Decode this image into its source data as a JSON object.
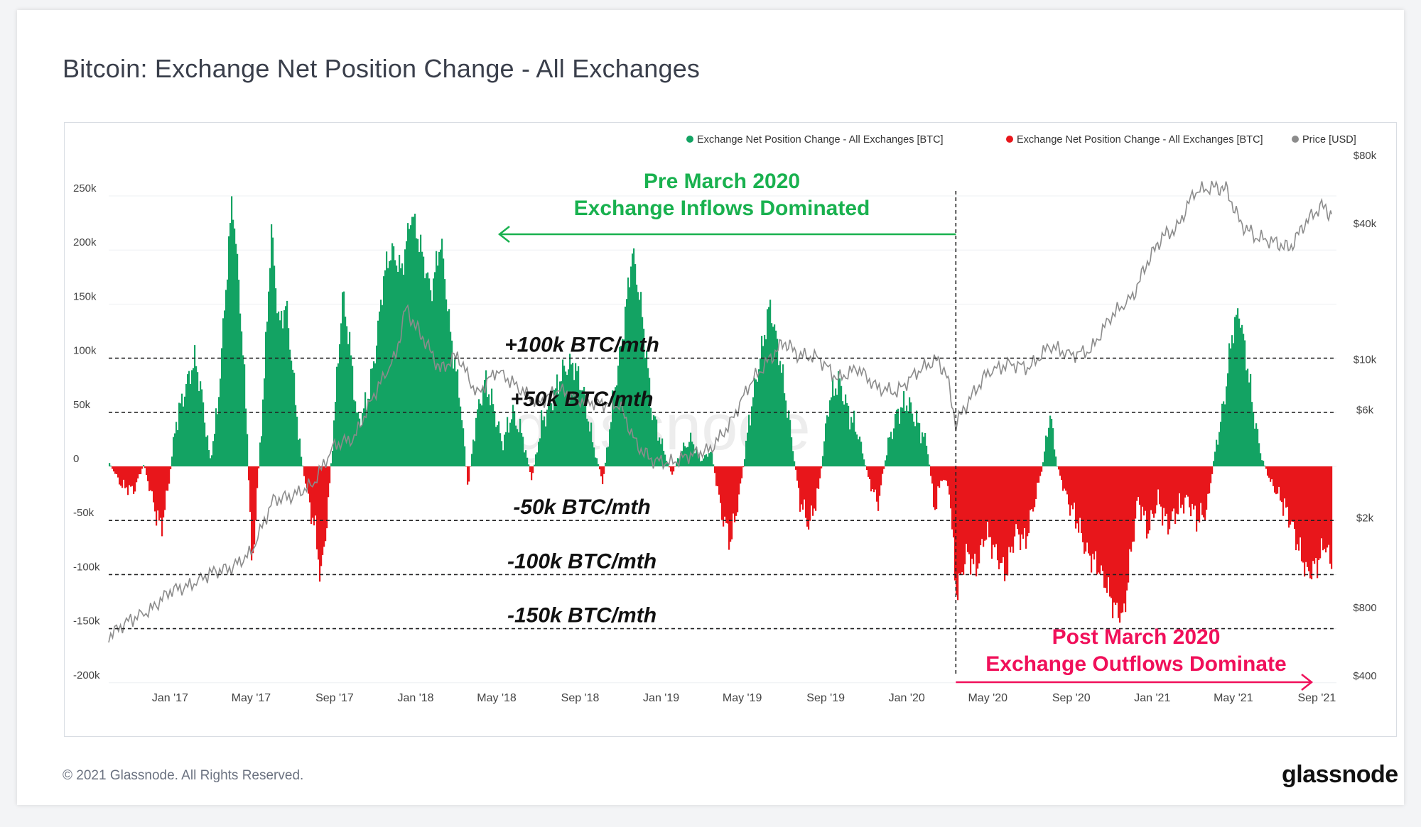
{
  "page": {
    "title": "Bitcoin: Exchange Net Position Change - All Exchanges",
    "copyright": "© 2021 Glassnode. All Rights Reserved.",
    "brand": "glassnode",
    "watermark": "glassnode"
  },
  "colors": {
    "inflow": "#13a363",
    "outflow": "#e8161b",
    "price": "#8c8c8c",
    "annot_green": "#19b14f",
    "annot_pink": "#f0105a",
    "grid": "#eef0f3"
  },
  "chart_data": {
    "type": "bar",
    "title": "Bitcoin: Exchange Net Position Change - All Exchanges",
    "legend": [
      {
        "label": "Exchange Net Position Change - All Exchanges [BTC]",
        "color": "#13a363"
      },
      {
        "label": "Exchange Net Position Change - All Exchanges [BTC]",
        "color": "#e8161b"
      },
      {
        "label": "Price [USD]",
        "color": "#8c8c8c"
      }
    ],
    "legend_position": "top-right",
    "x_range": [
      2016.75,
      2021.75
    ],
    "x_ticks": [
      {
        "label": "Jan '17",
        "t": 2017.0
      },
      {
        "label": "May '17",
        "t": 2017.33
      },
      {
        "label": "Sep '17",
        "t": 2017.67
      },
      {
        "label": "Jan '18",
        "t": 2018.0
      },
      {
        "label": "May '18",
        "t": 2018.33
      },
      {
        "label": "Sep '18",
        "t": 2018.67
      },
      {
        "label": "Jan '19",
        "t": 2019.0
      },
      {
        "label": "May '19",
        "t": 2019.33
      },
      {
        "label": "Sep '19",
        "t": 2019.67
      },
      {
        "label": "Jan '20",
        "t": 2020.0
      },
      {
        "label": "May '20",
        "t": 2020.33
      },
      {
        "label": "Sep '20",
        "t": 2020.67
      },
      {
        "label": "Jan '21",
        "t": 2021.0
      },
      {
        "label": "May '21",
        "t": 2021.33
      },
      {
        "label": "Sep '21",
        "t": 2021.67
      }
    ],
    "y_left": {
      "range": [
        -200000,
        250000
      ],
      "ticks": [
        {
          "label": "250k",
          "v": 250000
        },
        {
          "label": "200k",
          "v": 200000
        },
        {
          "label": "150k",
          "v": 150000
        },
        {
          "label": "100k",
          "v": 100000
        },
        {
          "label": "50k",
          "v": 50000
        },
        {
          "label": "0",
          "v": 0
        },
        {
          "label": "-50k",
          "v": -50000
        },
        {
          "label": "-100k",
          "v": -100000
        },
        {
          "label": "-150k",
          "v": -150000
        },
        {
          "label": "-200k",
          "v": -200000
        }
      ]
    },
    "y_right": {
      "scale": "log",
      "range": [
        400,
        80000
      ],
      "ticks": [
        {
          "label": "$80k",
          "v": 80000
        },
        {
          "label": "$40k",
          "v": 40000
        },
        {
          "label": "$10k",
          "v": 10000
        },
        {
          "label": "$6k",
          "v": 6000
        },
        {
          "label": "$2k",
          "v": 2000
        },
        {
          "label": "$800",
          "v": 800
        },
        {
          "label": "$400",
          "v": 400
        }
      ]
    },
    "net_position_series": [
      {
        "t": 2016.75,
        "v": 3000
      },
      {
        "t": 2016.8,
        "v": -18000
      },
      {
        "t": 2016.85,
        "v": -22000
      },
      {
        "t": 2016.89,
        "v": 2000
      },
      {
        "t": 2016.93,
        "v": -35000
      },
      {
        "t": 2016.96,
        "v": -58000
      },
      {
        "t": 2016.99,
        "v": -20000
      },
      {
        "t": 2017.02,
        "v": 40000
      },
      {
        "t": 2017.07,
        "v": 80000
      },
      {
        "t": 2017.1,
        "v": 100000
      },
      {
        "t": 2017.13,
        "v": 60000
      },
      {
        "t": 2017.16,
        "v": 5000
      },
      {
        "t": 2017.19,
        "v": 50000
      },
      {
        "t": 2017.22,
        "v": 150000
      },
      {
        "t": 2017.25,
        "v": 250000
      },
      {
        "t": 2017.28,
        "v": 160000
      },
      {
        "t": 2017.31,
        "v": 40000
      },
      {
        "t": 2017.33,
        "v": -100000
      },
      {
        "t": 2017.35,
        "v": -30000
      },
      {
        "t": 2017.38,
        "v": 80000
      },
      {
        "t": 2017.41,
        "v": 220000
      },
      {
        "t": 2017.44,
        "v": 130000
      },
      {
        "t": 2017.47,
        "v": 150000
      },
      {
        "t": 2017.5,
        "v": 80000
      },
      {
        "t": 2017.53,
        "v": 10000
      },
      {
        "t": 2017.56,
        "v": -30000
      },
      {
        "t": 2017.59,
        "v": -60000
      },
      {
        "t": 2017.61,
        "v": -105000
      },
      {
        "t": 2017.64,
        "v": -40000
      },
      {
        "t": 2017.67,
        "v": 60000
      },
      {
        "t": 2017.7,
        "v": 160000
      },
      {
        "t": 2017.73,
        "v": 110000
      },
      {
        "t": 2017.76,
        "v": 40000
      },
      {
        "t": 2017.8,
        "v": 60000
      },
      {
        "t": 2017.83,
        "v": 100000
      },
      {
        "t": 2017.87,
        "v": 180000
      },
      {
        "t": 2017.9,
        "v": 200000
      },
      {
        "t": 2017.94,
        "v": 180000
      },
      {
        "t": 2017.98,
        "v": 235000
      },
      {
        "t": 2018.02,
        "v": 200000
      },
      {
        "t": 2018.06,
        "v": 160000
      },
      {
        "t": 2018.1,
        "v": 210000
      },
      {
        "t": 2018.14,
        "v": 120000
      },
      {
        "t": 2018.18,
        "v": 60000
      },
      {
        "t": 2018.21,
        "v": -20000
      },
      {
        "t": 2018.24,
        "v": 40000
      },
      {
        "t": 2018.28,
        "v": 80000
      },
      {
        "t": 2018.32,
        "v": 50000
      },
      {
        "t": 2018.35,
        "v": 20000
      },
      {
        "t": 2018.39,
        "v": 50000
      },
      {
        "t": 2018.43,
        "v": 30000
      },
      {
        "t": 2018.47,
        "v": -12000
      },
      {
        "t": 2018.51,
        "v": 40000
      },
      {
        "t": 2018.55,
        "v": 60000
      },
      {
        "t": 2018.6,
        "v": 90000
      },
      {
        "t": 2018.64,
        "v": 95000
      },
      {
        "t": 2018.68,
        "v": 70000
      },
      {
        "t": 2018.72,
        "v": 20000
      },
      {
        "t": 2018.76,
        "v": -15000
      },
      {
        "t": 2018.8,
        "v": 60000
      },
      {
        "t": 2018.84,
        "v": 120000
      },
      {
        "t": 2018.88,
        "v": 200000
      },
      {
        "t": 2018.92,
        "v": 140000
      },
      {
        "t": 2018.96,
        "v": 50000
      },
      {
        "t": 2019.0,
        "v": 20000
      },
      {
        "t": 2019.04,
        "v": -8000
      },
      {
        "t": 2019.08,
        "v": 15000
      },
      {
        "t": 2019.12,
        "v": 25000
      },
      {
        "t": 2019.16,
        "v": 5000
      },
      {
        "t": 2019.2,
        "v": 15000
      },
      {
        "t": 2019.24,
        "v": -40000
      },
      {
        "t": 2019.28,
        "v": -70000
      },
      {
        "t": 2019.32,
        "v": -20000
      },
      {
        "t": 2019.36,
        "v": 50000
      },
      {
        "t": 2019.4,
        "v": 100000
      },
      {
        "t": 2019.44,
        "v": 150000
      },
      {
        "t": 2019.48,
        "v": 100000
      },
      {
        "t": 2019.52,
        "v": 40000
      },
      {
        "t": 2019.56,
        "v": -30000
      },
      {
        "t": 2019.6,
        "v": -55000
      },
      {
        "t": 2019.64,
        "v": -20000
      },
      {
        "t": 2019.68,
        "v": 60000
      },
      {
        "t": 2019.72,
        "v": 80000
      },
      {
        "t": 2019.76,
        "v": 50000
      },
      {
        "t": 2019.8,
        "v": 30000
      },
      {
        "t": 2019.84,
        "v": -10000
      },
      {
        "t": 2019.88,
        "v": -35000
      },
      {
        "t": 2019.92,
        "v": 20000
      },
      {
        "t": 2019.96,
        "v": 50000
      },
      {
        "t": 2020.0,
        "v": 60000
      },
      {
        "t": 2020.04,
        "v": 40000
      },
      {
        "t": 2020.08,
        "v": 20000
      },
      {
        "t": 2020.11,
        "v": -40000
      },
      {
        "t": 2020.14,
        "v": -10000
      },
      {
        "t": 2020.17,
        "v": -20000
      },
      {
        "t": 2020.2,
        "v": -120000
      },
      {
        "t": 2020.24,
        "v": -80000
      },
      {
        "t": 2020.28,
        "v": -95000
      },
      {
        "t": 2020.32,
        "v": -60000
      },
      {
        "t": 2020.36,
        "v": -80000
      },
      {
        "t": 2020.4,
        "v": -100000
      },
      {
        "t": 2020.44,
        "v": -60000
      },
      {
        "t": 2020.48,
        "v": -70000
      },
      {
        "t": 2020.52,
        "v": -30000
      },
      {
        "t": 2020.55,
        "v": 0
      },
      {
        "t": 2020.58,
        "v": 50000
      },
      {
        "t": 2020.61,
        "v": 0
      },
      {
        "t": 2020.65,
        "v": -30000
      },
      {
        "t": 2020.69,
        "v": -50000
      },
      {
        "t": 2020.73,
        "v": -80000
      },
      {
        "t": 2020.77,
        "v": -90000
      },
      {
        "t": 2020.81,
        "v": -110000
      },
      {
        "t": 2020.84,
        "v": -130000
      },
      {
        "t": 2020.88,
        "v": -140000
      },
      {
        "t": 2020.91,
        "v": -80000
      },
      {
        "t": 2020.94,
        "v": -30000
      },
      {
        "t": 2020.98,
        "v": -60000
      },
      {
        "t": 2021.02,
        "v": -30000
      },
      {
        "t": 2021.06,
        "v": -55000
      },
      {
        "t": 2021.1,
        "v": -40000
      },
      {
        "t": 2021.14,
        "v": -30000
      },
      {
        "t": 2021.18,
        "v": -50000
      },
      {
        "t": 2021.22,
        "v": -40000
      },
      {
        "t": 2021.25,
        "v": 10000
      },
      {
        "t": 2021.29,
        "v": 60000
      },
      {
        "t": 2021.32,
        "v": 120000
      },
      {
        "t": 2021.35,
        "v": 145000
      },
      {
        "t": 2021.38,
        "v": 100000
      },
      {
        "t": 2021.41,
        "v": 50000
      },
      {
        "t": 2021.44,
        "v": 10000
      },
      {
        "t": 2021.48,
        "v": -15000
      },
      {
        "t": 2021.52,
        "v": -30000
      },
      {
        "t": 2021.56,
        "v": -50000
      },
      {
        "t": 2021.6,
        "v": -80000
      },
      {
        "t": 2021.63,
        "v": -100000
      },
      {
        "t": 2021.67,
        "v": -90000
      },
      {
        "t": 2021.7,
        "v": -70000
      },
      {
        "t": 2021.73,
        "v": -95000
      }
    ],
    "price_series": [
      {
        "t": 2016.75,
        "v": 600
      },
      {
        "t": 2016.83,
        "v": 700
      },
      {
        "t": 2016.92,
        "v": 780
      },
      {
        "t": 2017.0,
        "v": 950
      },
      {
        "t": 2017.08,
        "v": 1000
      },
      {
        "t": 2017.17,
        "v": 1150
      },
      {
        "t": 2017.25,
        "v": 1200
      },
      {
        "t": 2017.33,
        "v": 1400
      },
      {
        "t": 2017.42,
        "v": 2400
      },
      {
        "t": 2017.5,
        "v": 2500
      },
      {
        "t": 2017.58,
        "v": 2800
      },
      {
        "t": 2017.67,
        "v": 4200
      },
      {
        "t": 2017.75,
        "v": 4500
      },
      {
        "t": 2017.83,
        "v": 7000
      },
      {
        "t": 2017.92,
        "v": 10500
      },
      {
        "t": 2017.96,
        "v": 17000
      },
      {
        "t": 2018.0,
        "v": 14000
      },
      {
        "t": 2018.04,
        "v": 12000
      },
      {
        "t": 2018.1,
        "v": 9000
      },
      {
        "t": 2018.17,
        "v": 10500
      },
      {
        "t": 2018.25,
        "v": 7000
      },
      {
        "t": 2018.33,
        "v": 9000
      },
      {
        "t": 2018.42,
        "v": 7500
      },
      {
        "t": 2018.5,
        "v": 6400
      },
      {
        "t": 2018.58,
        "v": 7400
      },
      {
        "t": 2018.67,
        "v": 6600
      },
      {
        "t": 2018.75,
        "v": 6400
      },
      {
        "t": 2018.83,
        "v": 6300
      },
      {
        "t": 2018.9,
        "v": 4200
      },
      {
        "t": 2018.96,
        "v": 3600
      },
      {
        "t": 2019.04,
        "v": 3500
      },
      {
        "t": 2019.12,
        "v": 3800
      },
      {
        "t": 2019.2,
        "v": 4000
      },
      {
        "t": 2019.28,
        "v": 5200
      },
      {
        "t": 2019.36,
        "v": 7800
      },
      {
        "t": 2019.44,
        "v": 10000
      },
      {
        "t": 2019.5,
        "v": 12000
      },
      {
        "t": 2019.56,
        "v": 10500
      },
      {
        "t": 2019.64,
        "v": 10200
      },
      {
        "t": 2019.72,
        "v": 8200
      },
      {
        "t": 2019.8,
        "v": 9200
      },
      {
        "t": 2019.88,
        "v": 7500
      },
      {
        "t": 2019.96,
        "v": 7200
      },
      {
        "t": 2020.04,
        "v": 8800
      },
      {
        "t": 2020.12,
        "v": 10000
      },
      {
        "t": 2020.16,
        "v": 8800
      },
      {
        "t": 2020.2,
        "v": 5200
      },
      {
        "t": 2020.26,
        "v": 6800
      },
      {
        "t": 2020.33,
        "v": 8800
      },
      {
        "t": 2020.42,
        "v": 9600
      },
      {
        "t": 2020.5,
        "v": 9200
      },
      {
        "t": 2020.58,
        "v": 11500
      },
      {
        "t": 2020.67,
        "v": 10500
      },
      {
        "t": 2020.75,
        "v": 11000
      },
      {
        "t": 2020.83,
        "v": 15500
      },
      {
        "t": 2020.92,
        "v": 19000
      },
      {
        "t": 2020.98,
        "v": 27000
      },
      {
        "t": 2021.04,
        "v": 35000
      },
      {
        "t": 2021.1,
        "v": 38000
      },
      {
        "t": 2021.17,
        "v": 55000
      },
      {
        "t": 2021.25,
        "v": 58000
      },
      {
        "t": 2021.3,
        "v": 57000
      },
      {
        "t": 2021.36,
        "v": 40000
      },
      {
        "t": 2021.42,
        "v": 35000
      },
      {
        "t": 2021.5,
        "v": 33000
      },
      {
        "t": 2021.56,
        "v": 31000
      },
      {
        "t": 2021.62,
        "v": 40000
      },
      {
        "t": 2021.69,
        "v": 48000
      },
      {
        "t": 2021.73,
        "v": 44000
      }
    ],
    "threshold_lines": [
      {
        "label": "+100k BTC/mth",
        "v": 100000
      },
      {
        "label": "+50k BTC/mth",
        "v": 50000
      },
      {
        "label": "-50k BTC/mth",
        "v": -50000
      },
      {
        "label": "-100k BTC/mth",
        "v": -100000
      },
      {
        "label": "-150k BTC/mth",
        "v": -150000
      }
    ],
    "divider": {
      "t": 2020.2
    },
    "annotations": {
      "pre": {
        "line1": "Pre March 2020",
        "line2": "Exchange Inflows Dominated"
      },
      "post": {
        "line1": "Post March 2020",
        "line2": "Exchange Outflows Dominate"
      }
    }
  }
}
